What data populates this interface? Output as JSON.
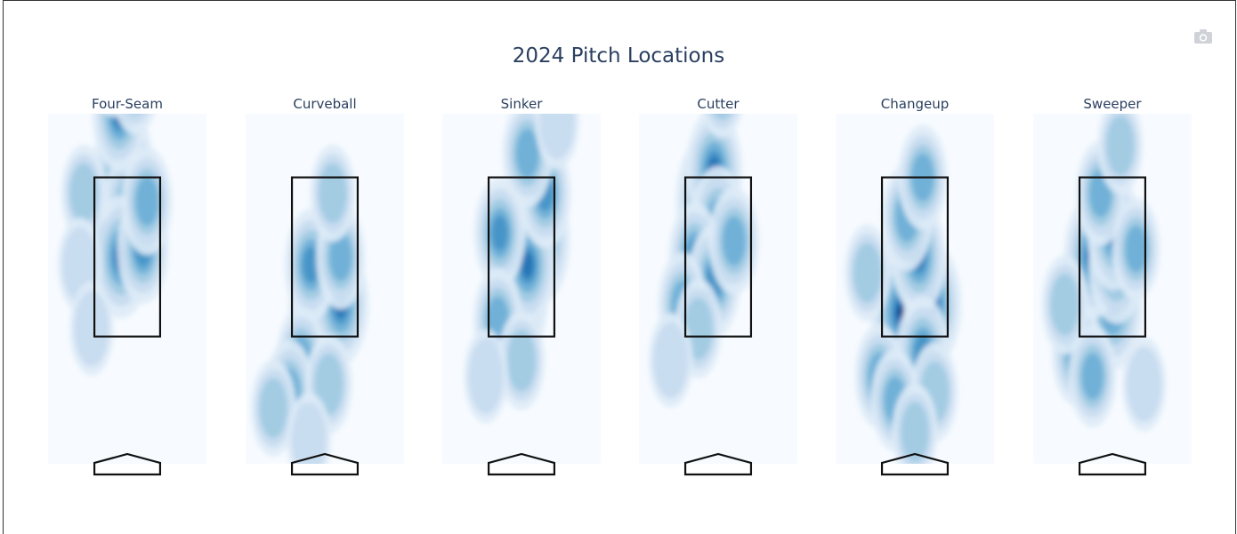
{
  "title": "2024 Pitch Locations",
  "toolbar": {
    "camera_icon": "camera-icon"
  },
  "colors": {
    "background": "#f7fbff",
    "scale": [
      "#f7fbff",
      "#deebf7",
      "#c6dbef",
      "#9ecae1",
      "#6baed6",
      "#4292c6",
      "#2171b5",
      "#08519c",
      "#08306b"
    ],
    "zone_stroke": "#111111",
    "title": "#2a3f5f"
  },
  "chart_data": {
    "type": "heatmap",
    "subplots": [
      {
        "name": "Four-Seam",
        "density_peaks": [
          {
            "x": -0.65,
            "y": 2.9,
            "w": 0.9
          },
          {
            "x": -0.1,
            "y": 3.6,
            "w": 1.0
          },
          {
            "x": 0.1,
            "y": 3.1,
            "w": 0.8
          },
          {
            "x": -0.15,
            "y": 2.5,
            "w": 0.85
          },
          {
            "x": 0.4,
            "y": 2.6,
            "w": 0.6
          },
          {
            "x": 0.5,
            "y": 3.2,
            "w": 0.55
          },
          {
            "x": -0.2,
            "y": 4.3,
            "w": 0.7
          },
          {
            "x": 0.2,
            "y": 4.7,
            "w": 0.5
          },
          {
            "x": -0.35,
            "y": 4.9,
            "w": 0.45
          },
          {
            "x": -1.1,
            "y": 3.3,
            "w": 0.35
          },
          {
            "x": -1.2,
            "y": 2.4,
            "w": 0.3
          },
          {
            "x": -0.9,
            "y": 1.6,
            "w": 0.3
          }
        ]
      },
      {
        "name": "Curveball",
        "density_peaks": [
          {
            "x": -0.15,
            "y": 1.8,
            "w": 1.0
          },
          {
            "x": 0.4,
            "y": 1.9,
            "w": 0.8
          },
          {
            "x": -0.35,
            "y": 2.4,
            "w": 0.65
          },
          {
            "x": 0.4,
            "y": 2.5,
            "w": 0.5
          },
          {
            "x": -0.6,
            "y": 1.2,
            "w": 0.55
          },
          {
            "x": -0.9,
            "y": 0.8,
            "w": 0.5
          },
          {
            "x": 0.1,
            "y": 0.9,
            "w": 0.4
          },
          {
            "x": -1.3,
            "y": 0.6,
            "w": 0.35
          },
          {
            "x": 0.2,
            "y": 3.3,
            "w": 0.35
          },
          {
            "x": -0.4,
            "y": 0.2,
            "w": 0.3
          }
        ]
      },
      {
        "name": "Sinker",
        "density_peaks": [
          {
            "x": -0.1,
            "y": 2.0,
            "w": 1.0
          },
          {
            "x": 0.5,
            "y": 2.7,
            "w": 0.85
          },
          {
            "x": 0.15,
            "y": 2.4,
            "w": 0.8
          },
          {
            "x": -0.55,
            "y": 2.8,
            "w": 0.6
          },
          {
            "x": 0.6,
            "y": 3.3,
            "w": 0.6
          },
          {
            "x": 0.15,
            "y": 3.8,
            "w": 0.55
          },
          {
            "x": -0.6,
            "y": 1.7,
            "w": 0.5
          },
          {
            "x": 0.0,
            "y": 1.2,
            "w": 0.4
          },
          {
            "x": -0.9,
            "y": 1.0,
            "w": 0.3
          },
          {
            "x": 0.9,
            "y": 4.2,
            "w": 0.3
          }
        ]
      },
      {
        "name": "Cutter",
        "density_peaks": [
          {
            "x": -0.3,
            "y": 3.2,
            "w": 1.0
          },
          {
            "x": -0.1,
            "y": 3.6,
            "w": 0.8
          },
          {
            "x": 0.0,
            "y": 2.9,
            "w": 0.75
          },
          {
            "x": -0.6,
            "y": 2.5,
            "w": 0.6
          },
          {
            "x": -0.1,
            "y": 2.2,
            "w": 0.65
          },
          {
            "x": 0.4,
            "y": 2.7,
            "w": 0.55
          },
          {
            "x": -0.9,
            "y": 1.9,
            "w": 0.5
          },
          {
            "x": -0.5,
            "y": 1.6,
            "w": 0.4
          },
          {
            "x": 0.1,
            "y": 4.6,
            "w": 0.35
          },
          {
            "x": -1.2,
            "y": 1.2,
            "w": 0.3
          }
        ]
      },
      {
        "name": "Changeup",
        "density_peaks": [
          {
            "x": -0.35,
            "y": 1.8,
            "w": 1.0
          },
          {
            "x": 0.45,
            "y": 1.9,
            "w": 0.85
          },
          {
            "x": 0.1,
            "y": 2.5,
            "w": 0.7
          },
          {
            "x": 0.2,
            "y": 1.3,
            "w": 0.65
          },
          {
            "x": -0.2,
            "y": 3.0,
            "w": 0.55
          },
          {
            "x": 0.2,
            "y": 3.5,
            "w": 0.5
          },
          {
            "x": -0.9,
            "y": 1.0,
            "w": 0.5
          },
          {
            "x": -0.5,
            "y": 0.7,
            "w": 0.45
          },
          {
            "x": 0.5,
            "y": 0.8,
            "w": 0.4
          },
          {
            "x": -1.2,
            "y": 2.3,
            "w": 0.35
          },
          {
            "x": 0.0,
            "y": 0.3,
            "w": 0.35
          }
        ]
      },
      {
        "name": "Sweeper",
        "density_peaks": [
          {
            "x": 0.0,
            "y": 1.9,
            "w": 1.0
          },
          {
            "x": -0.5,
            "y": 2.5,
            "w": 0.85
          },
          {
            "x": 0.1,
            "y": 2.4,
            "w": 0.75
          },
          {
            "x": 0.05,
            "y": 2.8,
            "w": 0.7
          },
          {
            "x": -0.9,
            "y": 1.3,
            "w": 0.55
          },
          {
            "x": -0.5,
            "y": 1.0,
            "w": 0.45
          },
          {
            "x": 0.6,
            "y": 2.6,
            "w": 0.45
          },
          {
            "x": -0.3,
            "y": 3.3,
            "w": 0.5
          },
          {
            "x": -1.2,
            "y": 1.9,
            "w": 0.4
          },
          {
            "x": 0.2,
            "y": 3.9,
            "w": 0.35
          },
          {
            "x": 0.8,
            "y": 0.9,
            "w": 0.3
          }
        ]
      }
    ],
    "strike_zone": {
      "x": [
        -0.83,
        0.83
      ],
      "y": [
        1.5,
        3.5
      ]
    },
    "xlim": [
      -2.0,
      2.0
    ],
    "ylim": [
      -0.1,
      4.3
    ],
    "grid": false,
    "legend": "none"
  }
}
